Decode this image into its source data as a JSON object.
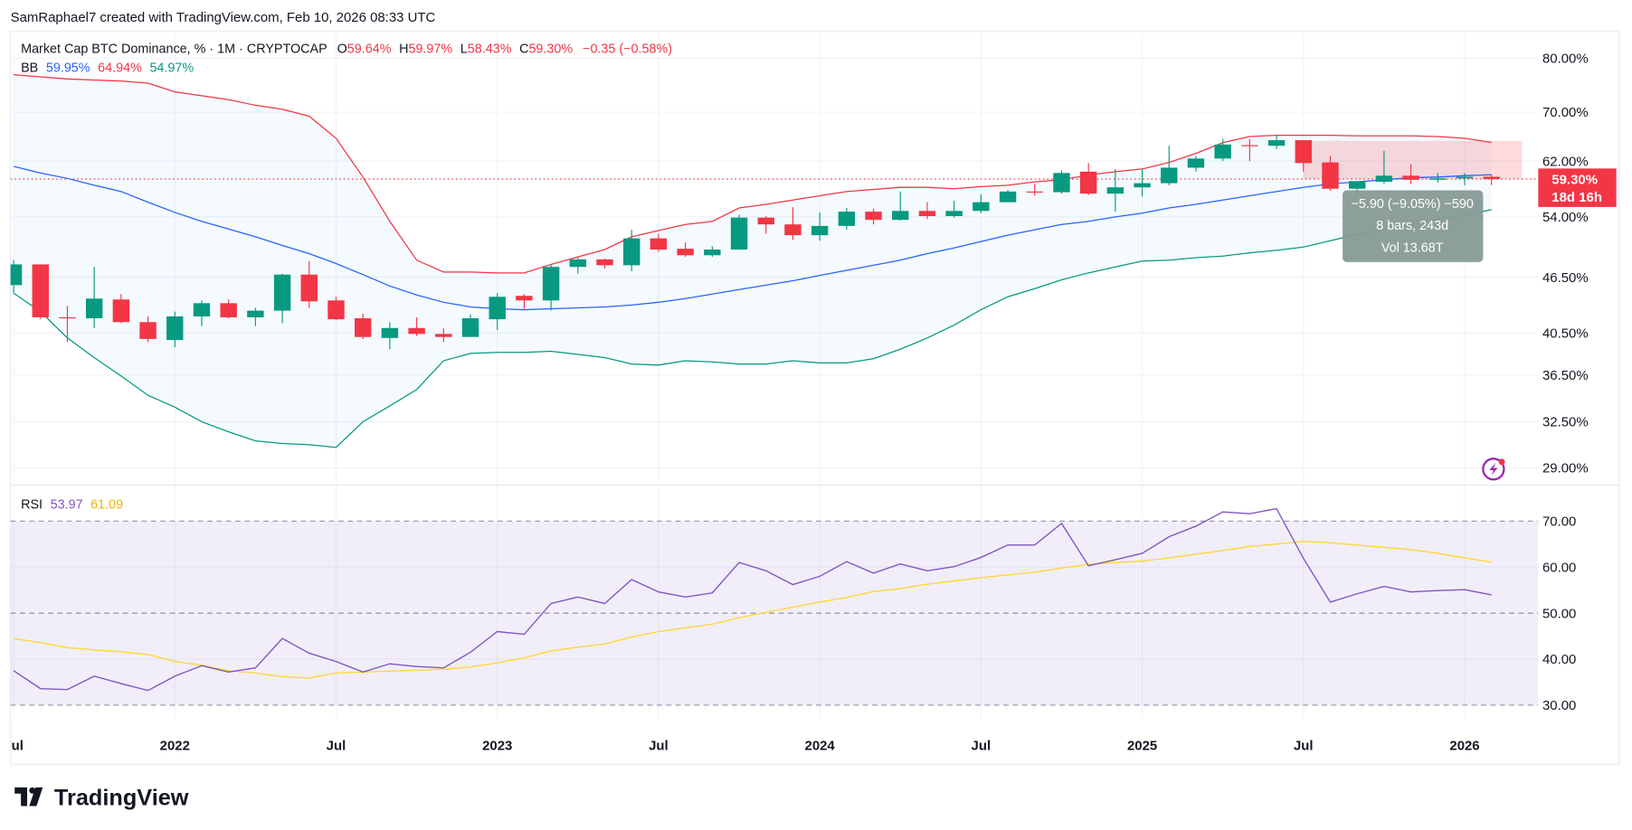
{
  "header": {
    "attribution": "SamRaphael7 created with TradingView.com, Feb 10, 2026 08:33 UTC"
  },
  "legend": {
    "symbol": "Market Cap BTC Dominance, % · 1M · CRYPTOCAP",
    "o_label": "O",
    "o_value": "59.64%",
    "h_label": "H",
    "h_value": "59.97%",
    "l_label": "L",
    "l_value": "58.43%",
    "c_label": "C",
    "c_value": "59.30%",
    "change": "−0.35 (−0.58%)",
    "bb_label": "BB",
    "bb_basis": "59.95%",
    "bb_upper": "64.94%",
    "bb_lower": "54.97%"
  },
  "rsi_legend": {
    "label": "RSI",
    "value": "53.97",
    "ma_value": "61.09"
  },
  "price_label": {
    "value": "59.30%",
    "countdown": "18d 16h"
  },
  "measure": {
    "line1": "−5.90 (−9.05%) −590",
    "line2": "8 bars, 243d",
    "line3": "Vol 13.68T",
    "from_price": 65.2,
    "to_price": 59.3
  },
  "logo": {
    "text": "TradingView"
  },
  "colors": {
    "up": "#089981",
    "down": "#f23645",
    "bb_basis": "#2962ff",
    "bb_upper": "#f23645",
    "bb_lower": "#089981",
    "rsi": "#7e57c2",
    "rsi_ma": "#fdd835"
  },
  "icons": {
    "alert": "lightning-icon"
  },
  "chart_data": [
    {
      "type": "candlestick",
      "title": "Market Cap BTC Dominance, % · 1M · CRYPTOCAP",
      "y_scale": "log",
      "ylim": [
        28,
        82
      ],
      "grid": true,
      "y_ticks": [
        80,
        70,
        62,
        54,
        46.5,
        40.5,
        36.5,
        32.5,
        29
      ],
      "y_tick_labels": [
        "80.00%",
        "70.00%",
        "62.00%",
        "54.00%",
        "46.50%",
        "40.50%",
        "36.50%",
        "32.50%",
        "29.00%"
      ],
      "x_ticks": [
        {
          "i": 0,
          "label": "Jul"
        },
        {
          "i": 6,
          "label": "2022"
        },
        {
          "i": 12,
          "label": "Jul"
        },
        {
          "i": 18,
          "label": "2023"
        },
        {
          "i": 24,
          "label": "Jul"
        },
        {
          "i": 30,
          "label": "2024"
        },
        {
          "i": 36,
          "label": "Jul"
        },
        {
          "i": 42,
          "label": "2025"
        },
        {
          "i": 48,
          "label": "Jul"
        },
        {
          "i": 54,
          "label": "2026"
        }
      ],
      "months": [
        "2021-07",
        "2021-08",
        "2021-09",
        "2021-10",
        "2021-11",
        "2021-12",
        "2022-01",
        "2022-02",
        "2022-03",
        "2022-04",
        "2022-05",
        "2022-06",
        "2022-07",
        "2022-08",
        "2022-09",
        "2022-10",
        "2022-11",
        "2022-12",
        "2023-01",
        "2023-02",
        "2023-03",
        "2023-04",
        "2023-05",
        "2023-06",
        "2023-07",
        "2023-08",
        "2023-09",
        "2023-10",
        "2023-11",
        "2023-12",
        "2024-01",
        "2024-02",
        "2024-03",
        "2024-04",
        "2024-05",
        "2024-06",
        "2024-07",
        "2024-08",
        "2024-09",
        "2024-10",
        "2024-11",
        "2024-12",
        "2025-01",
        "2025-02",
        "2025-03",
        "2025-04",
        "2025-05",
        "2025-06",
        "2025-07",
        "2025-08",
        "2025-09",
        "2025-10",
        "2025-11",
        "2025-12",
        "2026-01",
        "2026-02"
      ],
      "ohlc": [
        [
          45.6,
          48.5,
          44.7,
          48.0
        ],
        [
          48.0,
          48.0,
          41.9,
          42.1
        ],
        [
          42.1,
          43.3,
          39.6,
          42.0
        ],
        [
          42.0,
          47.7,
          41.0,
          44.1
        ],
        [
          44.0,
          44.6,
          41.5,
          41.6
        ],
        [
          41.6,
          42.2,
          39.6,
          39.9
        ],
        [
          39.8,
          42.7,
          39.1,
          42.2
        ],
        [
          42.2,
          43.9,
          41.2,
          43.6
        ],
        [
          43.6,
          44.0,
          42.0,
          42.1
        ],
        [
          42.1,
          43.1,
          41.2,
          42.8
        ],
        [
          42.8,
          46.9,
          41.5,
          46.8
        ],
        [
          46.8,
          48.4,
          43.1,
          43.8
        ],
        [
          43.9,
          44.3,
          41.8,
          41.9
        ],
        [
          42.0,
          42.5,
          39.9,
          40.1
        ],
        [
          40.0,
          41.6,
          38.9,
          41.0
        ],
        [
          41.0,
          42.1,
          40.2,
          40.4
        ],
        [
          40.4,
          41.0,
          39.6,
          40.1
        ],
        [
          40.1,
          42.4,
          40.1,
          42.0
        ],
        [
          41.9,
          44.7,
          40.8,
          44.3
        ],
        [
          44.4,
          44.6,
          43.0,
          43.9
        ],
        [
          43.9,
          48.0,
          42.8,
          47.7
        ],
        [
          47.7,
          48.8,
          46.9,
          48.6
        ],
        [
          48.6,
          48.7,
          47.5,
          47.9
        ],
        [
          47.9,
          52.3,
          47.2,
          51.2
        ],
        [
          51.2,
          51.8,
          49.5,
          49.8
        ],
        [
          49.9,
          50.7,
          48.9,
          49.1
        ],
        [
          49.1,
          50.2,
          48.9,
          49.8
        ],
        [
          49.8,
          54.3,
          49.8,
          53.9
        ],
        [
          53.9,
          54.1,
          51.8,
          53.0
        ],
        [
          53.0,
          55.3,
          51.0,
          51.6
        ],
        [
          51.6,
          54.6,
          50.9,
          52.8
        ],
        [
          52.8,
          55.2,
          52.3,
          54.7
        ],
        [
          54.7,
          55.1,
          53.0,
          53.6
        ],
        [
          53.6,
          57.5,
          53.5,
          54.8
        ],
        [
          54.8,
          56.0,
          53.7,
          54.1
        ],
        [
          54.1,
          56.2,
          53.9,
          54.8
        ],
        [
          54.8,
          57.1,
          54.5,
          56.0
        ],
        [
          56.0,
          57.7,
          56.0,
          57.5
        ],
        [
          57.5,
          58.6,
          56.9,
          57.4
        ],
        [
          57.4,
          60.6,
          57.2,
          60.2
        ],
        [
          60.4,
          61.7,
          57.0,
          57.2
        ],
        [
          57.2,
          60.8,
          54.7,
          58.1
        ],
        [
          58.1,
          60.8,
          56.8,
          58.7
        ],
        [
          58.7,
          64.4,
          58.4,
          61.0
        ],
        [
          61.0,
          62.8,
          60.4,
          62.4
        ],
        [
          62.4,
          65.5,
          62.0,
          64.6
        ],
        [
          64.5,
          65.5,
          62.0,
          64.4
        ],
        [
          64.4,
          66.1,
          63.9,
          65.3
        ],
        [
          65.3,
          65.3,
          60.4,
          61.7
        ],
        [
          61.8,
          62.8,
          57.6,
          57.9
        ],
        [
          57.9,
          59.0,
          57.2,
          59.0
        ],
        [
          58.9,
          63.6,
          58.6,
          59.8
        ],
        [
          59.8,
          61.5,
          58.6,
          59.2
        ],
        [
          59.2,
          60.2,
          58.8,
          59.4
        ],
        [
          59.4,
          60.2,
          58.4,
          59.64
        ],
        [
          59.64,
          59.97,
          58.43,
          59.3
        ]
      ],
      "bb_upper": [
        76.8,
        76.4,
        76.0,
        75.8,
        75.6,
        75.2,
        73.6,
        72.9,
        72.2,
        71.2,
        70.5,
        69.3,
        65.6,
        59.6,
        53.4,
        48.5,
        47.1,
        47.1,
        47.0,
        47.0,
        48.0,
        48.9,
        49.8,
        51.4,
        52.2,
        53.0,
        53.4,
        55.2,
        55.7,
        56.3,
        56.9,
        57.5,
        57.8,
        58.1,
        58.1,
        57.9,
        58.2,
        58.4,
        58.9,
        59.2,
        59.9,
        60.4,
        60.8,
        61.8,
        63.2,
        64.9,
        65.9,
        66.1,
        66.1,
        66.1,
        66.0,
        66.0,
        66.0,
        65.9,
        65.6,
        64.94
      ],
      "bb_basis": [
        61.2,
        60.2,
        59.4,
        58.4,
        57.5,
        56.0,
        54.6,
        53.4,
        52.4,
        51.4,
        50.3,
        49.3,
        48.1,
        46.8,
        45.5,
        44.5,
        43.7,
        43.2,
        43.0,
        42.9,
        43.0,
        43.1,
        43.2,
        43.4,
        43.7,
        44.1,
        44.6,
        45.1,
        45.6,
        46.1,
        46.7,
        47.3,
        47.9,
        48.5,
        49.3,
        50.0,
        50.8,
        51.6,
        52.3,
        53.0,
        53.4,
        54.0,
        54.5,
        55.2,
        55.7,
        56.3,
        56.9,
        57.5,
        58.1,
        58.6,
        58.9,
        59.2,
        59.5,
        59.6,
        59.8,
        59.95
      ],
      "bb_lower": [
        44.7,
        42.7,
        40.0,
        38.1,
        36.4,
        34.7,
        33.7,
        32.5,
        31.7,
        31.0,
        30.8,
        30.7,
        30.5,
        32.5,
        33.8,
        35.2,
        37.8,
        38.5,
        38.6,
        38.6,
        38.7,
        38.4,
        38.1,
        37.5,
        37.4,
        37.8,
        37.7,
        37.5,
        37.5,
        37.8,
        37.6,
        37.6,
        38.0,
        38.9,
        40.0,
        41.3,
        42.9,
        44.3,
        45.2,
        46.2,
        47.0,
        47.7,
        48.4,
        48.5,
        48.8,
        49.0,
        49.4,
        49.7,
        50.1,
        50.9,
        51.7,
        52.3,
        53.0,
        53.7,
        54.2,
        54.97
      ]
    },
    {
      "type": "line",
      "title": "RSI",
      "ylim": [
        25,
        78
      ],
      "y_ticks": [
        70,
        60,
        50,
        40,
        30
      ],
      "y_tick_labels": [
        "70.00",
        "60.00",
        "50.00",
        "40.00",
        "30.00"
      ],
      "band": [
        30,
        70
      ],
      "series": [
        {
          "name": "RSI",
          "values": [
            37.5,
            33.6,
            33.4,
            36.3,
            34.7,
            33.2,
            36.3,
            38.6,
            37.2,
            38.1,
            44.5,
            41.3,
            39.5,
            37.2,
            39.0,
            38.4,
            38.1,
            41.5,
            46.0,
            45.4,
            52.1,
            53.5,
            52.1,
            57.3,
            54.6,
            53.5,
            54.4,
            61.0,
            59.2,
            56.2,
            58.0,
            61.2,
            58.7,
            60.7,
            59.2,
            60.1,
            62.1,
            64.8,
            64.8,
            69.5,
            60.3,
            61.6,
            63.0,
            66.6,
            68.9,
            72.0,
            71.6,
            72.7,
            61.9,
            52.4,
            54.2,
            55.8,
            54.6,
            54.9,
            55.1,
            53.97
          ]
        },
        {
          "values": [
            44.5,
            43.6,
            42.5,
            42.0,
            41.6,
            41.0,
            39.5,
            38.7,
            37.5,
            37.0,
            36.2,
            35.9,
            37.0,
            37.2,
            37.4,
            37.6,
            37.8,
            38.3,
            39.2,
            40.3,
            41.8,
            42.6,
            43.3,
            44.8,
            46.0,
            46.8,
            47.6,
            49.0,
            50.2,
            51.3,
            52.4,
            53.4,
            54.7,
            55.3,
            56.3,
            57.0,
            57.7,
            58.3,
            58.9,
            59.8,
            60.6,
            61.0,
            61.3,
            62.0,
            62.8,
            63.6,
            64.5,
            65.0,
            65.6,
            65.3,
            64.8,
            64.3,
            63.8,
            63.0,
            62.0,
            61.09
          ]
        }
      ]
    }
  ]
}
